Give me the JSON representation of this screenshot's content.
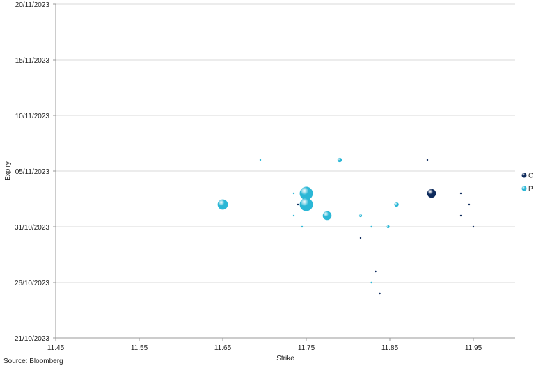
{
  "chart_data": {
    "type": "scatter",
    "xlabel": "Strike",
    "ylabel": "Expiry",
    "xlim": [
      11.45,
      12.0
    ],
    "x_ticks": [
      "11.45",
      "11.55",
      "11.65",
      "11.75",
      "11.85",
      "11.95"
    ],
    "y_ticks": [
      "21/10/2023",
      "26/10/2023",
      "31/10/2023",
      "05/11/2023",
      "10/11/2023",
      "15/11/2023",
      "20/11/2023"
    ],
    "ylim": [
      "2023-10-21",
      "2023-11-20"
    ],
    "grid": "horizontal",
    "legend_position": "right",
    "series": [
      {
        "name": "C",
        "color": "#0d2a5c",
        "points": [
          {
            "x": 11.9,
            "y": "2023-11-03",
            "size": 6
          },
          {
            "x": 11.895,
            "y": "2023-11-06",
            "size": 1
          },
          {
            "x": 11.935,
            "y": "2023-11-03",
            "size": 1
          },
          {
            "x": 11.945,
            "y": "2023-11-02",
            "size": 1
          },
          {
            "x": 11.935,
            "y": "2023-11-01",
            "size": 1
          },
          {
            "x": 11.95,
            "y": "2023-10-31",
            "size": 1
          },
          {
            "x": 11.815,
            "y": "2023-10-30",
            "size": 1
          },
          {
            "x": 11.833,
            "y": "2023-10-27",
            "size": 1
          },
          {
            "x": 11.838,
            "y": "2023-10-25",
            "size": 1
          },
          {
            "x": 11.74,
            "y": "2023-11-02",
            "size": 1
          }
        ]
      },
      {
        "name": "P",
        "color": "#2bb7d6",
        "points": [
          {
            "x": 11.65,
            "y": "2023-11-02",
            "size": 7
          },
          {
            "x": 11.75,
            "y": "2023-11-03",
            "size": 9
          },
          {
            "x": 11.75,
            "y": "2023-11-02",
            "size": 9
          },
          {
            "x": 11.775,
            "y": "2023-11-01",
            "size": 6
          },
          {
            "x": 11.79,
            "y": "2023-11-06",
            "size": 3
          },
          {
            "x": 11.815,
            "y": "2023-11-01",
            "size": 2
          },
          {
            "x": 11.858,
            "y": "2023-11-02",
            "size": 3
          },
          {
            "x": 11.848,
            "y": "2023-10-31",
            "size": 2
          },
          {
            "x": 11.695,
            "y": "2023-11-06",
            "size": 1
          },
          {
            "x": 11.735,
            "y": "2023-11-03",
            "size": 1
          },
          {
            "x": 11.735,
            "y": "2023-11-01",
            "size": 1
          },
          {
            "x": 11.745,
            "y": "2023-10-31",
            "size": 1
          },
          {
            "x": 11.828,
            "y": "2023-10-31",
            "size": 1
          },
          {
            "x": 11.828,
            "y": "2023-10-26",
            "size": 1
          }
        ]
      }
    ]
  },
  "footer": {
    "source": "Source: Bloomberg"
  }
}
